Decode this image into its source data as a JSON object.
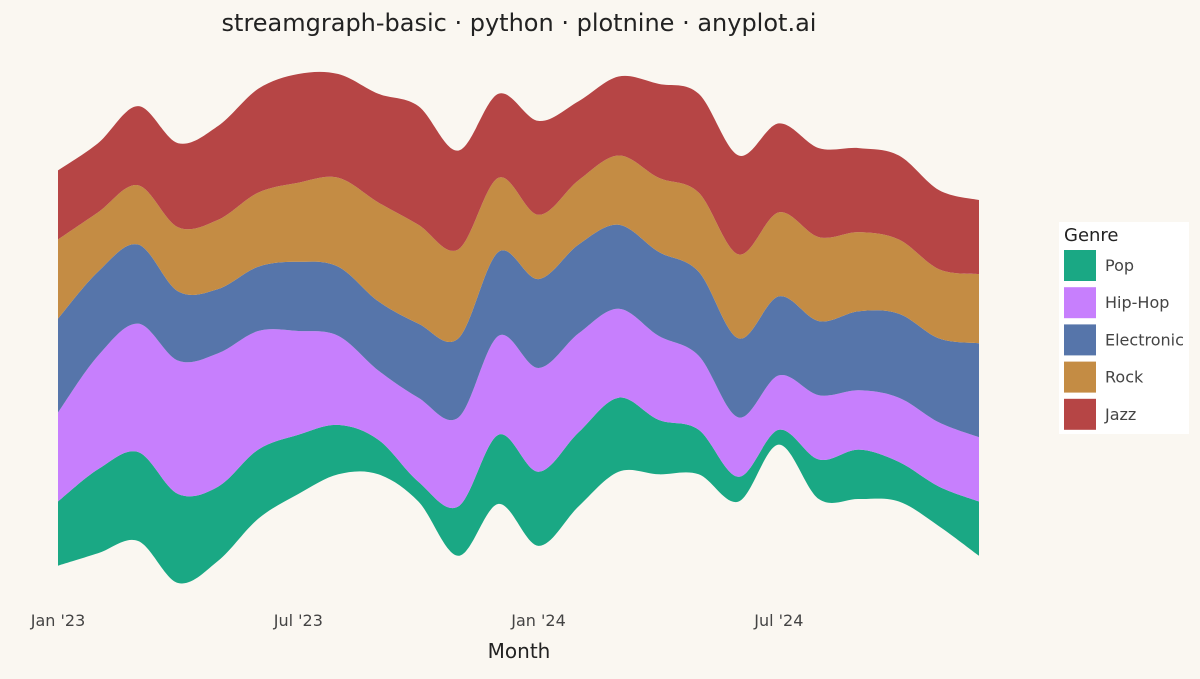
{
  "chart_data": {
    "type": "area",
    "subtype": "streamgraph",
    "title": "streamgraph-basic · python · plotnine · anyplot.ai",
    "xlabel": "Month",
    "ylabel": "",
    "x_ticks": [
      "Jan '23",
      "Jul '23",
      "Jan '24",
      "Jul '24"
    ],
    "x": [
      "2023-01",
      "2023-02",
      "2023-03",
      "2023-04",
      "2023-05",
      "2023-06",
      "2023-07",
      "2023-08",
      "2023-09",
      "2023-10",
      "2023-11",
      "2023-12",
      "2024-01",
      "2024-02",
      "2024-03",
      "2024-04",
      "2024-05",
      "2024-06",
      "2024-07",
      "2024-08",
      "2024-09",
      "2024-10",
      "2024-11",
      "2024-12"
    ],
    "baseline_offset": [
      -17,
      -13,
      -8,
      -16,
      -12,
      -4,
      0,
      2,
      0,
      -4,
      -14,
      -3,
      -10,
      -4,
      2,
      1,
      0,
      -9,
      0,
      -8,
      -8,
      -9,
      -15,
      -19
    ],
    "series": [
      {
        "name": "Pop",
        "color": "#1AA884",
        "values": [
          13,
          17,
          18,
          18,
          15,
          14,
          12,
          10,
          7,
          4,
          10,
          14,
          15,
          15,
          15,
          11,
          9,
          5,
          3,
          8,
          10,
          8,
          8,
          11
        ]
      },
      {
        "name": "Hip-Hop",
        "color": "#C77FFD",
        "values": [
          18,
          23,
          26,
          27,
          27,
          24,
          21,
          18,
          14,
          17,
          18,
          20,
          21,
          20,
          18,
          17,
          15,
          12,
          11,
          13,
          12,
          13,
          13,
          13
        ]
      },
      {
        "name": "Electronic",
        "color": "#5675AA",
        "values": [
          19,
          17,
          16,
          14,
          13,
          13,
          14,
          14,
          14,
          15,
          16,
          17,
          18,
          18,
          17,
          17,
          17,
          16,
          16,
          15,
          16,
          17,
          17,
          19
        ]
      },
      {
        "name": "Rock",
        "color": "#C48C44",
        "values": [
          16,
          12,
          12,
          13,
          14,
          15,
          16,
          18,
          20,
          20,
          18,
          15,
          13,
          13,
          14,
          15,
          16,
          17,
          17,
          17,
          16,
          15,
          14,
          14
        ]
      },
      {
        "name": "Jazz",
        "color": "#B64545",
        "values": [
          14,
          14,
          16,
          17,
          19,
          21,
          22,
          21,
          22,
          24,
          20,
          17,
          19,
          16,
          16,
          19,
          20,
          20,
          18,
          18,
          17,
          17,
          16,
          15
        ]
      }
    ],
    "legend": {
      "title": "Genre",
      "position": "right"
    },
    "grid": false
  }
}
